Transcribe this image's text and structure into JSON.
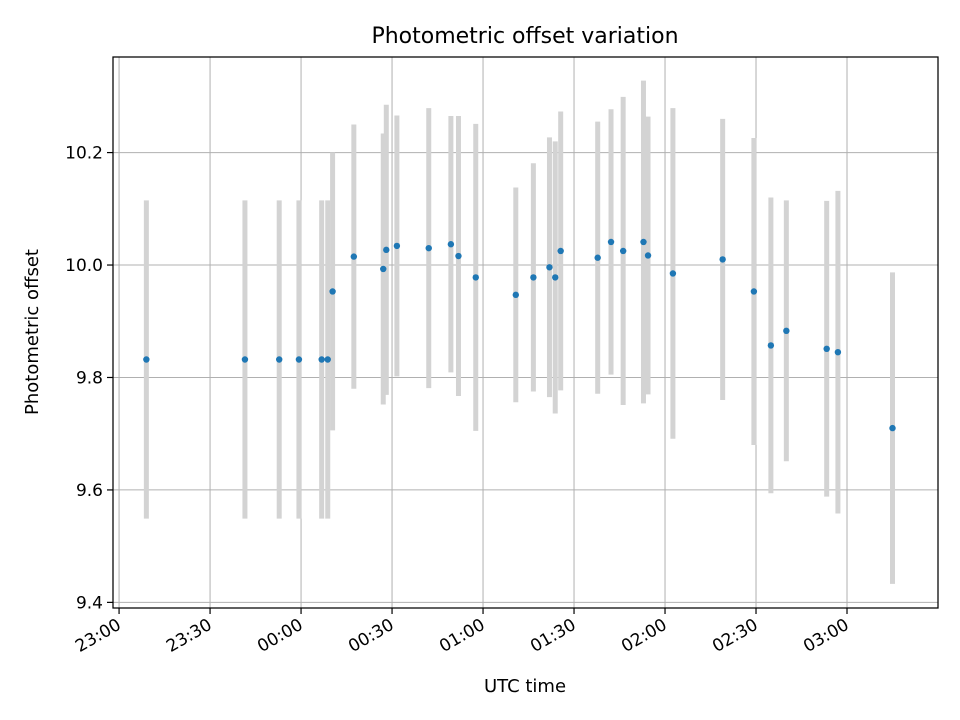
{
  "chart_data": {
    "type": "scatter",
    "title": "Photometric offset variation",
    "xlabel": "UTC time",
    "ylabel": "Photometric offset",
    "x_unit": "minutes relative to 00:00 UTC",
    "xlim": [
      -62,
      210
    ],
    "ylim": [
      9.39,
      10.37
    ],
    "x_ticks": [
      {
        "value": -60,
        "label": "23:00"
      },
      {
        "value": -30,
        "label": "23:30"
      },
      {
        "value": 0,
        "label": "00:00"
      },
      {
        "value": 30,
        "label": "00:30"
      },
      {
        "value": 60,
        "label": "01:00"
      },
      {
        "value": 90,
        "label": "01:30"
      },
      {
        "value": 120,
        "label": "02:00"
      },
      {
        "value": 150,
        "label": "02:30"
      },
      {
        "value": 180,
        "label": "03:00"
      }
    ],
    "y_ticks": [
      {
        "value": 9.4,
        "label": "9.4"
      },
      {
        "value": 9.6,
        "label": "9.6"
      },
      {
        "value": 9.8,
        "label": "9.8"
      },
      {
        "value": 10.0,
        "label": "10.0"
      },
      {
        "value": 10.2,
        "label": "10.2"
      }
    ],
    "grid": true,
    "marker_color": "#1f77b4",
    "errorbar_color": "#d3d3d3",
    "points": [
      {
        "x": -51.0,
        "y": 9.832,
        "err": 0.283
      },
      {
        "x": -18.5,
        "y": 9.832,
        "err": 0.283
      },
      {
        "x": -7.2,
        "y": 9.832,
        "err": 0.283
      },
      {
        "x": -0.7,
        "y": 9.832,
        "err": 0.283
      },
      {
        "x": 6.8,
        "y": 9.832,
        "err": 0.283
      },
      {
        "x": 8.8,
        "y": 9.832,
        "err": 0.283
      },
      {
        "x": 10.4,
        "y": 9.953,
        "err": 0.247
      },
      {
        "x": 17.4,
        "y": 10.015,
        "err": 0.235
      },
      {
        "x": 27.1,
        "y": 9.993,
        "err": 0.241
      },
      {
        "x": 28.1,
        "y": 10.027,
        "err": 0.258
      },
      {
        "x": 31.6,
        "y": 10.034,
        "err": 0.232
      },
      {
        "x": 42.1,
        "y": 10.03,
        "err": 0.249
      },
      {
        "x": 49.4,
        "y": 10.037,
        "err": 0.228
      },
      {
        "x": 51.9,
        "y": 10.016,
        "err": 0.249
      },
      {
        "x": 57.6,
        "y": 9.978,
        "err": 0.273
      },
      {
        "x": 70.8,
        "y": 9.947,
        "err": 0.191
      },
      {
        "x": 76.6,
        "y": 9.978,
        "err": 0.203
      },
      {
        "x": 81.9,
        "y": 9.996,
        "err": 0.231
      },
      {
        "x": 83.8,
        "y": 9.978,
        "err": 0.242
      },
      {
        "x": 85.6,
        "y": 10.025,
        "err": 0.248
      },
      {
        "x": 97.8,
        "y": 10.013,
        "err": 0.242
      },
      {
        "x": 102.2,
        "y": 10.041,
        "err": 0.236
      },
      {
        "x": 106.2,
        "y": 10.025,
        "err": 0.274
      },
      {
        "x": 112.9,
        "y": 10.041,
        "err": 0.287
      },
      {
        "x": 114.4,
        "y": 10.017,
        "err": 0.247
      },
      {
        "x": 122.6,
        "y": 9.985,
        "err": 0.294
      },
      {
        "x": 139.0,
        "y": 10.01,
        "err": 0.25
      },
      {
        "x": 149.3,
        "y": 9.953,
        "err": 0.273
      },
      {
        "x": 154.9,
        "y": 9.857,
        "err": 0.263
      },
      {
        "x": 160.0,
        "y": 9.883,
        "err": 0.232
      },
      {
        "x": 173.3,
        "y": 9.851,
        "err": 0.263
      },
      {
        "x": 177.0,
        "y": 9.845,
        "err": 0.287
      },
      {
        "x": 195.0,
        "y": 9.71,
        "err": 0.277
      }
    ]
  }
}
